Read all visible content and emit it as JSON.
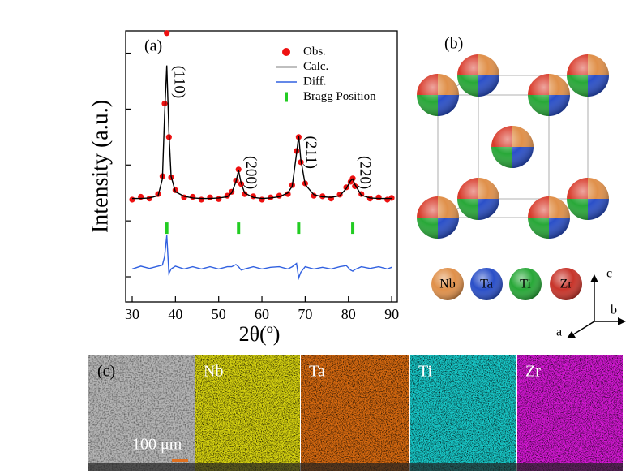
{
  "chart_data": {
    "type": "line",
    "label": "(a)",
    "x_label": "2θ(º)",
    "y_label": "Intensity (a.u.)",
    "xlim": [
      28.5,
      91.3
    ],
    "xticks": [
      30,
      40,
      50,
      60,
      70,
      80,
      90
    ],
    "ylim": [
      -0.45,
      4.4
    ],
    "yticks": [
      0,
      1,
      2,
      3,
      4
    ],
    "legend": "upper right",
    "x": [
      30,
      32,
      34,
      36,
      37,
      37.5,
      38,
      38.5,
      39,
      40,
      42,
      44,
      46,
      48,
      50,
      52,
      53,
      54,
      54.6,
      55.2,
      56,
      58,
      60,
      62,
      64,
      66,
      67,
      68,
      68.5,
      69,
      70,
      72,
      74,
      76,
      78,
      79.5,
      80.5,
      81,
      81.5,
      83,
      85,
      87,
      89,
      90
    ],
    "series": [
      {
        "name": "Obs.",
        "color": "#ee1111",
        "style": "markers",
        "values": [
          1.38,
          1.43,
          1.4,
          1.48,
          1.8,
          3.1,
          4.36,
          2.5,
          1.78,
          1.55,
          1.42,
          1.43,
          1.38,
          1.42,
          1.39,
          1.45,
          1.52,
          1.72,
          1.92,
          1.66,
          1.48,
          1.44,
          1.38,
          1.42,
          1.45,
          1.48,
          1.64,
          2.25,
          2.5,
          2.05,
          1.67,
          1.45,
          1.44,
          1.4,
          1.47,
          1.6,
          1.7,
          1.76,
          1.62,
          1.48,
          1.4,
          1.42,
          1.38,
          1.41
        ]
      },
      {
        "name": "Calc.",
        "color": "#000000",
        "style": "line",
        "values": [
          1.4,
          1.4,
          1.41,
          1.45,
          1.75,
          2.9,
          3.78,
          2.6,
          1.8,
          1.52,
          1.44,
          1.41,
          1.4,
          1.4,
          1.41,
          1.43,
          1.5,
          1.7,
          1.9,
          1.68,
          1.5,
          1.42,
          1.4,
          1.41,
          1.43,
          1.5,
          1.62,
          2.2,
          2.52,
          2.1,
          1.65,
          1.47,
          1.43,
          1.42,
          1.45,
          1.58,
          1.72,
          1.75,
          1.65,
          1.46,
          1.41,
          1.4,
          1.4,
          1.4
        ]
      },
      {
        "name": "Diff.",
        "color": "#3060e0",
        "style": "line",
        "values": [
          0.14,
          0.19,
          0.15,
          0.19,
          0.21,
          0.36,
          0.74,
          0.06,
          0.14,
          0.19,
          0.14,
          0.18,
          0.14,
          0.18,
          0.14,
          0.18,
          0.18,
          0.22,
          0.18,
          0.12,
          0.14,
          0.18,
          0.14,
          0.17,
          0.18,
          0.14,
          0.18,
          0.24,
          -0.02,
          0.08,
          0.18,
          0.14,
          0.17,
          0.14,
          0.18,
          0.2,
          0.12,
          0.1,
          0.13,
          0.18,
          0.15,
          0.18,
          0.14,
          0.17
        ]
      },
      {
        "name": "Bragg Position",
        "color": "#22cc22",
        "style": "ticks",
        "x": [
          38,
          54.6,
          68.5,
          81
        ],
        "values": [
          0.87,
          0.87,
          0.87,
          0.87
        ],
        "peak_labels": [
          "(110)",
          "(200)",
          "(211)",
          "(220)"
        ]
      }
    ]
  },
  "structure": {
    "label": "(b)",
    "legend": [
      "Nb",
      "Ta",
      "Ti",
      "Zr"
    ],
    "axes": [
      "c",
      "b",
      "a"
    ]
  },
  "maps": {
    "label": "(c)",
    "scale_bar": "100 μm",
    "panels": [
      "Nb",
      "Ta",
      "Ti",
      "Zr"
    ]
  }
}
